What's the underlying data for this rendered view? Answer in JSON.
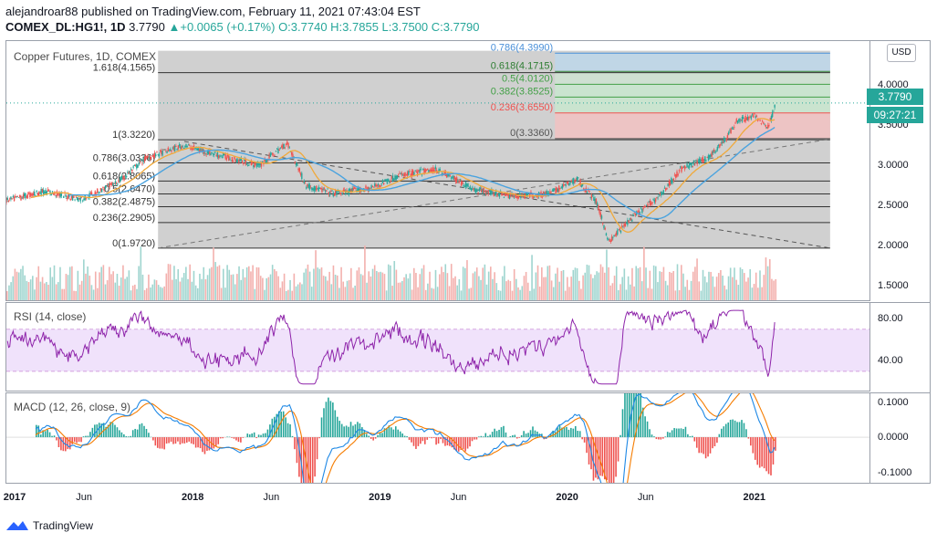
{
  "header": {
    "line1": "alejandroar88 published on TradingView.com, February 11, 2021 07:43:04 EST",
    "symbol": "COMEX_DL:HG1!, 1D",
    "last": "3.7790",
    "change": "▲+0.0065 (+0.17%)",
    "ohlc": "O:3.7740 H:3.7855 L:3.7500 C:3.7790"
  },
  "main": {
    "title": "Copper Futures, 1D, COMEX",
    "usd": "USD",
    "price_badge": "3.7790",
    "time_badge": "09:27:21"
  },
  "rsi": {
    "title": "RSI (14, close)"
  },
  "macd": {
    "title": "MACD (12, 26, close, 9)"
  },
  "brand": {
    "name": "TradingView"
  },
  "chart_data": [
    {
      "type": "candlestick",
      "title": "Copper Futures, 1D, COMEX",
      "ylim": [
        1.3,
        4.55
      ],
      "y_ticks": [
        "4.0000",
        "3.5000",
        "3.0000",
        "2.5000",
        "2.0000",
        "1.5000"
      ],
      "x_ticks": [
        "2017",
        "Jun",
        "2018",
        "Jun",
        "2019",
        "Jun",
        "2020",
        "Jun",
        "2021"
      ],
      "price_path": [
        [
          2017.0,
          2.56
        ],
        [
          2017.2,
          2.68
        ],
        [
          2017.4,
          2.58
        ],
        [
          2017.6,
          2.8
        ],
        [
          2017.75,
          3.1
        ],
        [
          2017.95,
          3.25
        ],
        [
          2018.1,
          3.15
        ],
        [
          2018.35,
          3.0
        ],
        [
          2018.5,
          3.28
        ],
        [
          2018.6,
          2.75
        ],
        [
          2018.75,
          2.65
        ],
        [
          2018.95,
          2.72
        ],
        [
          2019.1,
          2.88
        ],
        [
          2019.3,
          2.95
        ],
        [
          2019.5,
          2.7
        ],
        [
          2019.7,
          2.62
        ],
        [
          2019.9,
          2.65
        ],
        [
          2020.05,
          2.83
        ],
        [
          2020.15,
          2.55
        ],
        [
          2020.22,
          2.05
        ],
        [
          2020.32,
          2.3
        ],
        [
          2020.5,
          2.65
        ],
        [
          2020.6,
          2.95
        ],
        [
          2020.75,
          3.1
        ],
        [
          2020.85,
          3.35
        ],
        [
          2020.9,
          3.55
        ],
        [
          2021.0,
          3.62
        ],
        [
          2021.07,
          3.48
        ],
        [
          2021.11,
          3.779
        ]
      ],
      "fib_levels": [
        {
          "label": "0(1.9720)",
          "value": 1.972
        },
        {
          "label": "0.236(2.2905)",
          "value": 2.2905
        },
        {
          "label": "0.382(2.4875)",
          "value": 2.4875
        },
        {
          "label": "0.5(2.6470)",
          "value": 2.647
        },
        {
          "label": "0.618(2.8065)",
          "value": 2.8065
        },
        {
          "label": "0.786(3.0336)",
          "value": 3.0336
        },
        {
          "label": "1(3.3220)",
          "value": 3.322
        },
        {
          "label": "1.618(4.1565)",
          "value": 4.1565
        }
      ],
      "fib_extension": [
        {
          "label": "0(3.3360)",
          "value": 3.336
        },
        {
          "label": "0.236(3.6550)",
          "value": 3.655
        },
        {
          "label": "0.382(3.8525)",
          "value": 3.8525
        },
        {
          "label": "0.5(4.0120)",
          "value": 4.012
        },
        {
          "label": "0.618(4.1715)",
          "value": 4.1715
        },
        {
          "label": "0.786(4.3990)",
          "value": 4.399
        }
      ],
      "colors": {
        "up": "#26a69a",
        "down": "#ef5350",
        "ma": "#4aa3df",
        "ema": "#f0a93a"
      }
    },
    {
      "type": "line",
      "title": "RSI (14, close)",
      "ylim": [
        10,
        95
      ],
      "y_ticks": [
        "80.00",
        "40.00"
      ],
      "bands": [
        70,
        30
      ]
    },
    {
      "type": "line",
      "title": "MACD (12, 26, close, 9)",
      "ylim": [
        -0.135,
        0.125
      ],
      "y_ticks": [
        "0.1000",
        "0.0000",
        "-0.1000"
      ]
    }
  ]
}
